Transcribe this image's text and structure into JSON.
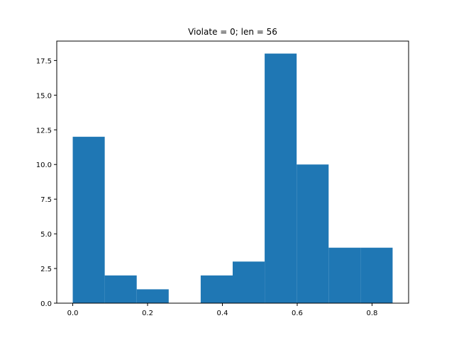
{
  "chart_data": {
    "type": "bar",
    "title": "Violate = 0; len = 56",
    "xlabel": "",
    "ylabel": "",
    "bin_edges": [
      0.0,
      0.0855,
      0.171,
      0.2565,
      0.342,
      0.4275,
      0.513,
      0.5985,
      0.684,
      0.7695,
      0.855
    ],
    "values": [
      12,
      2,
      1,
      0,
      2,
      3,
      18,
      10,
      4,
      4
    ],
    "xlim": [
      -0.04275,
      0.89775
    ],
    "ylim": [
      0,
      18.9
    ],
    "xticks": [
      0.0,
      0.2,
      0.4,
      0.6,
      0.8
    ],
    "xtick_labels": [
      "0.0",
      "0.2",
      "0.4",
      "0.6",
      "0.8"
    ],
    "yticks": [
      0.0,
      2.5,
      5.0,
      7.5,
      10.0,
      12.5,
      15.0,
      17.5
    ],
    "ytick_labels": [
      "0.0",
      "2.5",
      "5.0",
      "7.5",
      "10.0",
      "12.5",
      "15.0",
      "17.5"
    ],
    "bar_color": "#1f77b4",
    "grid": false,
    "legend": "none"
  }
}
